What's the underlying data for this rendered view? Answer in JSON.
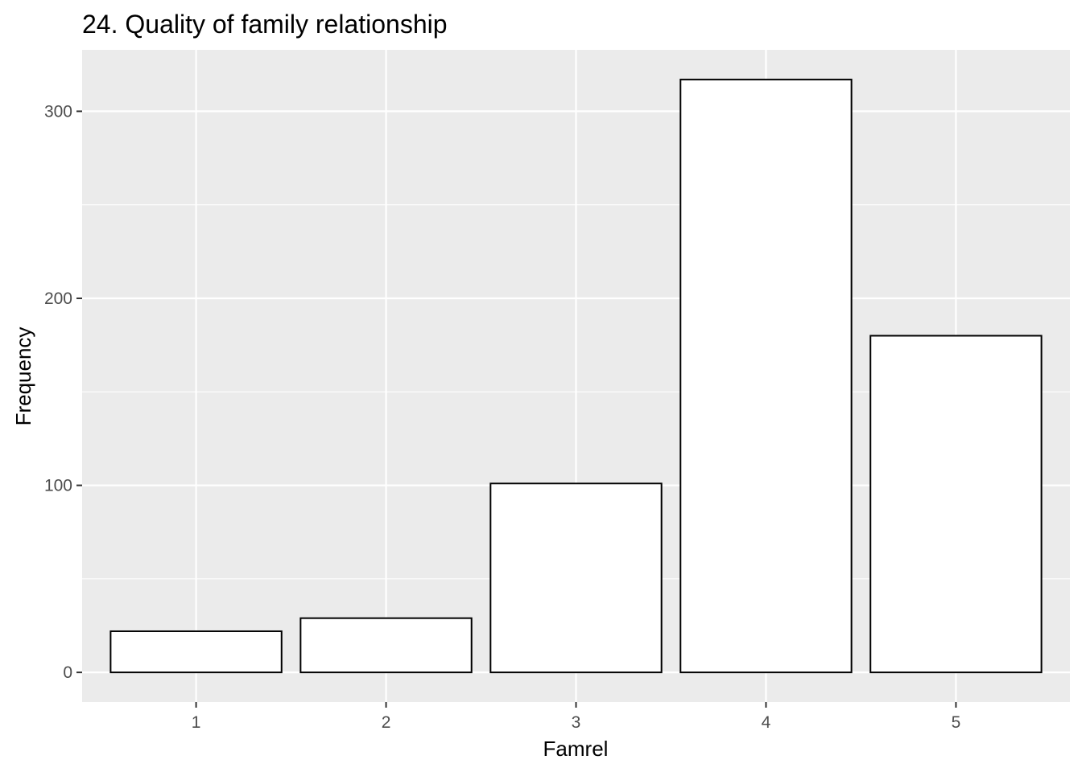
{
  "chart_data": {
    "type": "bar",
    "title": "24. Quality of family relationship",
    "xlabel": "Famrel",
    "ylabel": "Frequency",
    "categories": [
      "1",
      "2",
      "3",
      "4",
      "5"
    ],
    "values": [
      22,
      29,
      101,
      317,
      180
    ],
    "ylim": [
      -15.85,
      332.85
    ],
    "yticks": [
      0,
      100,
      200,
      300
    ],
    "grid": true,
    "legend": "none",
    "colors": {
      "panel_background": "#ebebeb",
      "grid": "#ffffff",
      "bar_fill": "#ffffff",
      "bar_outline": "#000000",
      "tick_text": "#4d4d4d",
      "tick_mark": "#333333"
    }
  }
}
